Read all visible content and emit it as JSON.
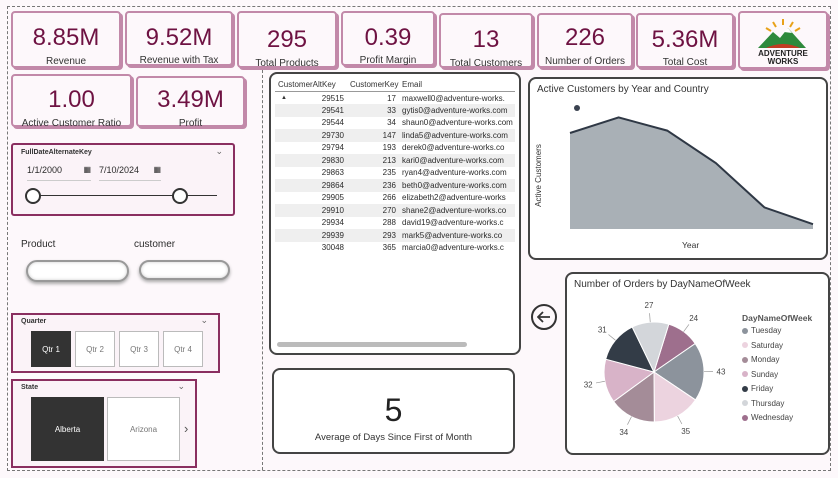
{
  "kpis": [
    {
      "value": "8.85M",
      "label": "Revenue"
    },
    {
      "value": "9.52M",
      "label": "Revenue with Tax"
    },
    {
      "value": "295",
      "label": "Total Products"
    },
    {
      "value": "0.39",
      "label": "Profit Margin"
    },
    {
      "value": "13",
      "label": "Total Customers"
    },
    {
      "value": "226",
      "label": "Number of Orders"
    },
    {
      "value": "5.36M",
      "label": "Total Cost"
    },
    {
      "value": "1.00",
      "label": "Active Customer Ratio"
    },
    {
      "value": "3.49M",
      "label": "Profit"
    }
  ],
  "logo": {
    "line1": "ADVENTURE",
    "line2": "WORKS"
  },
  "date_slicer": {
    "title": "FullDateAlternateKey",
    "start": "1/1/2000",
    "end": "7/10/2024"
  },
  "labels": {
    "product": "Product",
    "customer": "customer"
  },
  "quarter_slicer": {
    "title": "Quarter",
    "options": [
      "Qtr 1",
      "Qtr 2",
      "Qtr 3",
      "Qtr 4"
    ],
    "selected": "Qtr 1"
  },
  "state_slicer": {
    "title": "State",
    "options": [
      "Alberta",
      "Arizona"
    ],
    "selected": "Alberta"
  },
  "table": {
    "columns": [
      "CustomerAltKey",
      "CustomerKey",
      "Email"
    ],
    "rows": [
      [
        "29515",
        "17",
        "maxwell0@adventure-works."
      ],
      [
        "29541",
        "33",
        "gytis0@adventure-works.com"
      ],
      [
        "29544",
        "34",
        "shaun0@adventure-works.com"
      ],
      [
        "29730",
        "147",
        "linda5@adventure-works.com"
      ],
      [
        "29794",
        "193",
        "derek0@adventure-works.co"
      ],
      [
        "29830",
        "213",
        "kari0@adventure-works.com"
      ],
      [
        "29863",
        "235",
        "ryan4@adventure-works.com"
      ],
      [
        "29864",
        "236",
        "beth0@adventure-works.com"
      ],
      [
        "29905",
        "266",
        "elizabeth2@adventure-works"
      ],
      [
        "29910",
        "270",
        "shane2@adventure-works.co"
      ],
      [
        "29934",
        "288",
        "david19@adventure-works.c"
      ],
      [
        "29939",
        "293",
        "mark5@adventure-works.co"
      ],
      [
        "30048",
        "365",
        "marcia0@adventure-works.c"
      ]
    ]
  },
  "card": {
    "value": "5",
    "label": "Average of Days Since First of Month"
  },
  "colors": {
    "accent": "#6e1242",
    "border": "#c289a9",
    "area": "#a9b0b6"
  },
  "chart_data": [
    {
      "type": "area",
      "title": "Active Customers by Year and Country",
      "xlabel": "Year",
      "ylabel": "Active Customers",
      "x": [
        1,
        2,
        3,
        4,
        5,
        6
      ],
      "values": [
        0.8,
        0.93,
        0.82,
        0.55,
        0.18,
        0.04
      ],
      "ylim": [
        0,
        1
      ]
    },
    {
      "type": "pie",
      "title": "Number of Orders by DayNameOfWeek",
      "legend_title": "DayNameOfWeek",
      "categories": [
        "Tuesday",
        "Saturday",
        "Monday",
        "Sunday",
        "Friday",
        "Thursday",
        "Wednesday"
      ],
      "values": [
        43,
        35,
        34,
        32,
        31,
        27,
        24
      ],
      "colors": [
        "#8c939c",
        "#ecd3df",
        "#a48c98",
        "#d8b3c8",
        "#333c47",
        "#d3d6da",
        "#9e6f8d"
      ]
    }
  ]
}
